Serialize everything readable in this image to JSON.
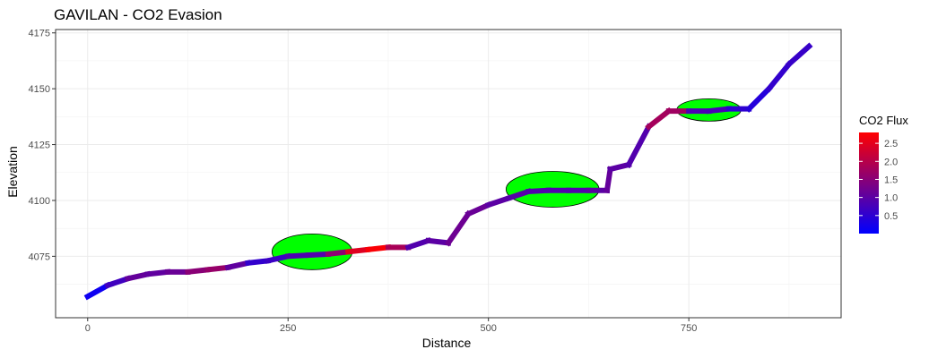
{
  "chart_data": {
    "type": "line",
    "title": "GAVILAN - CO2 Evasion",
    "xlabel": "Distance",
    "ylabel": "Elevation",
    "xlim": [
      -40,
      940
    ],
    "ylim": [
      4047.5,
      4176.5
    ],
    "x_ticks": [
      0,
      250,
      500,
      750
    ],
    "y_ticks": [
      4075,
      4100,
      4125,
      4150,
      4175
    ],
    "grid": true,
    "legend": {
      "title": "CO2 Flux",
      "placement": "right",
      "range": [
        0,
        2.8
      ],
      "colors": [
        "#0000FF",
        "#FF0000"
      ],
      "ticks": [
        0.5,
        1.0,
        1.5,
        2.0,
        2.5
      ],
      "tick_labels": [
        "0.5",
        "1.0",
        "1.5",
        "2.0",
        "2.5"
      ]
    },
    "series": [
      {
        "points": [
          {
            "x": 0,
            "y": 4057,
            "flux": 0.1
          },
          {
            "x": 25,
            "y": 4062,
            "flux": 0.2
          },
          {
            "x": 50,
            "y": 4065,
            "flux": 1.2
          },
          {
            "x": 75,
            "y": 4067,
            "flux": 1.0
          },
          {
            "x": 100,
            "y": 4068,
            "flux": 1.1
          },
          {
            "x": 125,
            "y": 4068,
            "flux": 1.2
          },
          {
            "x": 150,
            "y": 4069,
            "flux": 1.8
          },
          {
            "x": 175,
            "y": 4070,
            "flux": 1.5
          },
          {
            "x": 200,
            "y": 4072,
            "flux": 0.6
          },
          {
            "x": 225,
            "y": 4073,
            "flux": 0.5
          },
          {
            "x": 250,
            "y": 4075,
            "flux": 0.8
          },
          {
            "x": 275,
            "y": 4075.5,
            "flux": 0.9
          },
          {
            "x": 300,
            "y": 4076,
            "flux": 0.9
          },
          {
            "x": 325,
            "y": 4077,
            "flux": 2.2
          },
          {
            "x": 350,
            "y": 4078,
            "flux": 2.7
          },
          {
            "x": 375,
            "y": 4079,
            "flux": 2.8
          },
          {
            "x": 400,
            "y": 4079,
            "flux": 0.9
          },
          {
            "x": 425,
            "y": 4082,
            "flux": 0.9
          },
          {
            "x": 450,
            "y": 4081,
            "flux": 1.1
          },
          {
            "x": 475,
            "y": 4094,
            "flux": 1.3
          },
          {
            "x": 500,
            "y": 4098,
            "flux": 1.0
          },
          {
            "x": 525,
            "y": 4101,
            "flux": 1.0
          },
          {
            "x": 550,
            "y": 4104,
            "flux": 0.9
          },
          {
            "x": 575,
            "y": 4104.5,
            "flux": 0.9
          },
          {
            "x": 600,
            "y": 4104.5,
            "flux": 0.9
          },
          {
            "x": 625,
            "y": 4104.5,
            "flux": 0.9
          },
          {
            "x": 648,
            "y": 4104.5,
            "flux": 1.1
          },
          {
            "x": 652,
            "y": 4114,
            "flux": 1.1
          },
          {
            "x": 675,
            "y": 4116,
            "flux": 0.9
          },
          {
            "x": 700,
            "y": 4133,
            "flux": 0.9
          },
          {
            "x": 725,
            "y": 4140,
            "flux": 2.7
          },
          {
            "x": 750,
            "y": 4140,
            "flux": 0.8
          },
          {
            "x": 775,
            "y": 4140,
            "flux": 0.9
          },
          {
            "x": 800,
            "y": 4141,
            "flux": 0.7
          },
          {
            "x": 825,
            "y": 4141,
            "flux": 0.3
          },
          {
            "x": 850,
            "y": 4150,
            "flux": 0.5
          },
          {
            "x": 875,
            "y": 4161,
            "flux": 0.6
          },
          {
            "x": 900,
            "y": 4169,
            "flux": 0.6
          }
        ]
      }
    ],
    "ellipses": [
      {
        "cx": 280,
        "cy": 4077,
        "rx": 50,
        "ry": 8,
        "color": "#00FF00"
      },
      {
        "cx": 580,
        "cy": 4105,
        "rx": 58,
        "ry": 8,
        "color": "#00FF00"
      },
      {
        "cx": 775,
        "cy": 4140.5,
        "rx": 40,
        "ry": 5,
        "color": "#00FF00"
      }
    ]
  }
}
